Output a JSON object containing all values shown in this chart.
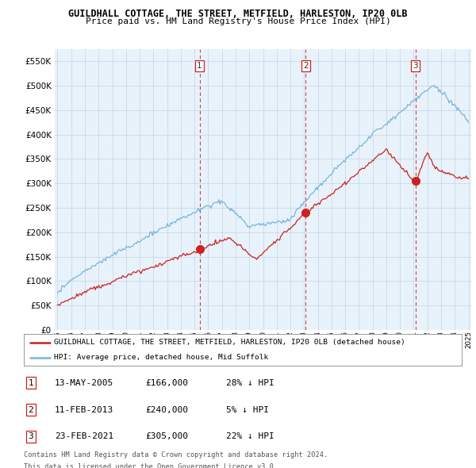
{
  "title": "GUILDHALL COTTAGE, THE STREET, METFIELD, HARLESTON, IP20 0LB",
  "subtitle": "Price paid vs. HM Land Registry's House Price Index (HPI)",
  "hpi_color": "#7ab4d8",
  "price_color": "#cc2222",
  "vline_color": "#cc2222",
  "background_color": "#ffffff",
  "chart_bg_color": "#e8f2fb",
  "grid_color": "#c8d8e8",
  "ylim": [
    0,
    575000
  ],
  "yticks": [
    0,
    50000,
    100000,
    150000,
    200000,
    250000,
    300000,
    350000,
    400000,
    450000,
    500000,
    550000
  ],
  "transactions": [
    {
      "label": "1",
      "date": "13-MAY-2005",
      "price": 166000,
      "hpi_diff": "28% ↓ HPI",
      "x": 2005.37
    },
    {
      "label": "2",
      "date": "11-FEB-2013",
      "price": 240000,
      "hpi_diff": "5% ↓ HPI",
      "x": 2013.12
    },
    {
      "label": "3",
      "date": "23-FEB-2021",
      "price": 305000,
      "hpi_diff": "22% ↓ HPI",
      "x": 2021.14
    }
  ],
  "legend_line1": "GUILDHALL COTTAGE, THE STREET, METFIELD, HARLESTON, IP20 0LB (detached house)",
  "legend_line2": "HPI: Average price, detached house, Mid Suffolk",
  "footer_line1": "Contains HM Land Registry data © Crown copyright and database right 2024.",
  "footer_line2": "This data is licensed under the Open Government Licence v3.0.",
  "table_rows": [
    [
      "1",
      "13-MAY-2005",
      "£166,000",
      "28% ↓ HPI"
    ],
    [
      "2",
      "11-FEB-2013",
      "£240,000",
      "5% ↓ HPI"
    ],
    [
      "3",
      "23-FEB-2021",
      "£305,000",
      "22% ↓ HPI"
    ]
  ],
  "xlim_left": 1994.8,
  "xlim_right": 2025.2
}
